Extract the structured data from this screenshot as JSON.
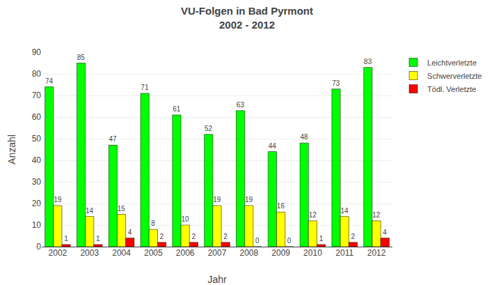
{
  "chart_data": {
    "type": "bar",
    "title": "VU-Folgen in Bad Pyrmont",
    "subtitle": "2002 - 2012",
    "xlabel": "Jahr",
    "ylabel": "Anzahl",
    "categories": [
      "2002",
      "2003",
      "2004",
      "2005",
      "2006",
      "2007",
      "2008",
      "2009",
      "2010",
      "2011",
      "2012"
    ],
    "series": [
      {
        "name": "Leichtverletzte",
        "color": "#00FF00",
        "values": [
          74,
          85,
          47,
          71,
          61,
          52,
          63,
          44,
          48,
          73,
          83
        ]
      },
      {
        "name": "Schwerverletzte",
        "color": "#FFFF00",
        "values": [
          19,
          14,
          15,
          8,
          10,
          19,
          19,
          16,
          12,
          14,
          12
        ]
      },
      {
        "name": "Tödl. Verletzte",
        "color": "#FF0000",
        "values": [
          1,
          1,
          4,
          2,
          2,
          2,
          0,
          0,
          1,
          2,
          4
        ]
      }
    ],
    "ylim": [
      0,
      90
    ],
    "yticks": [
      0,
      10,
      20,
      30,
      40,
      50,
      60,
      70,
      80,
      90
    ],
    "grid": true,
    "legend": "upper right",
    "data_labels": true
  }
}
